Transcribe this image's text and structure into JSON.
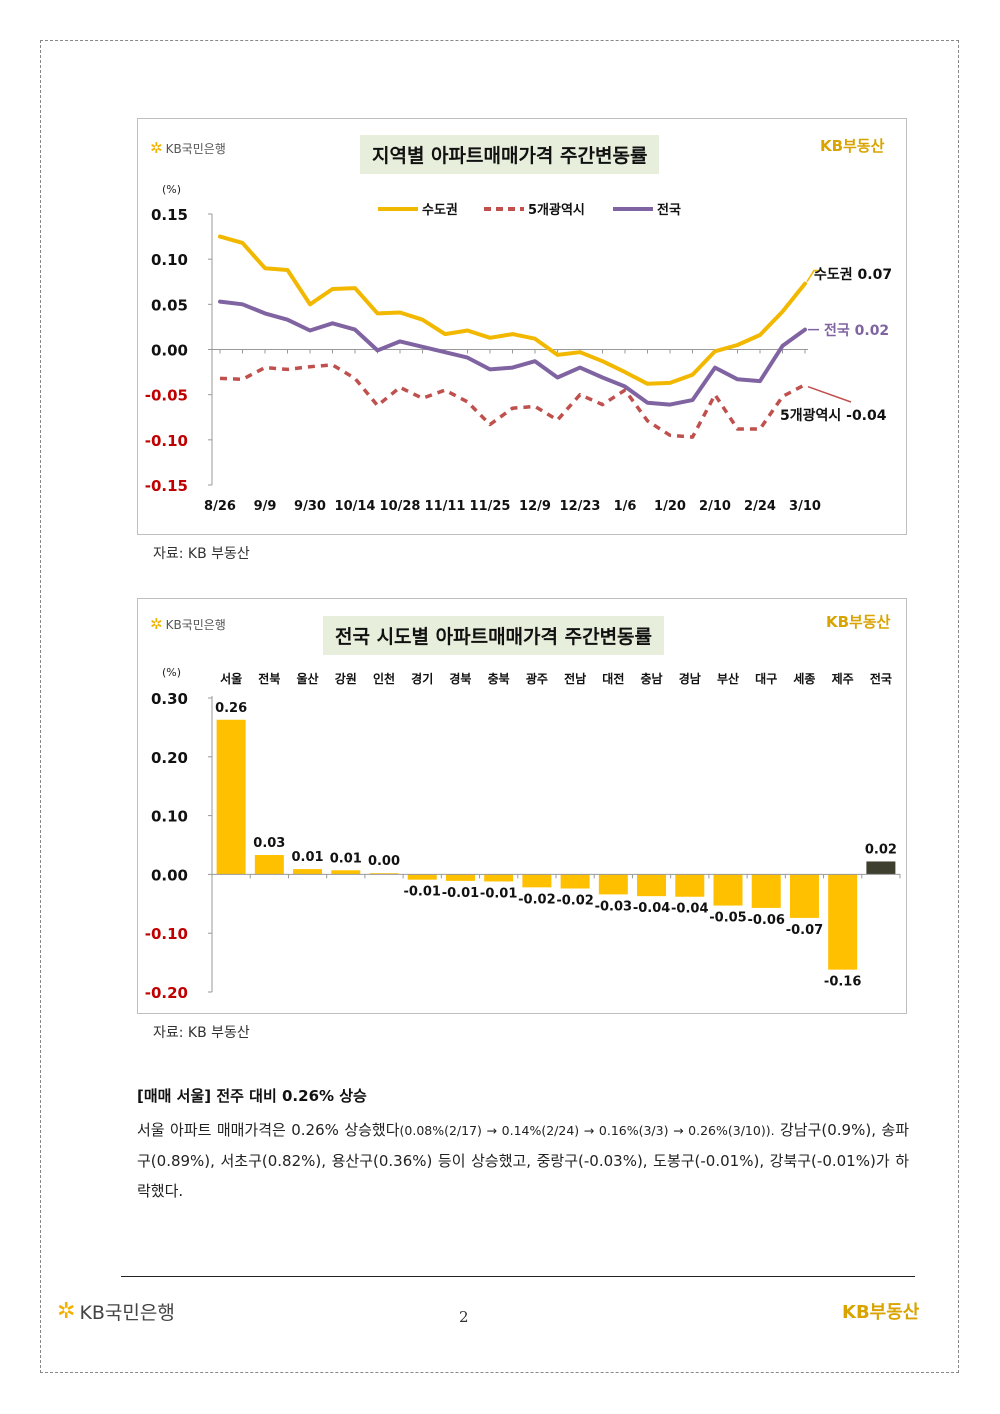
{
  "brand": {
    "kb_bank": "KB국민은행",
    "kb_realestate": "KB부동산"
  },
  "chart1": {
    "title": "지역별 아파트매매가격 주간변동률",
    "unit": "(%)",
    "source": "자료: KB 부동산",
    "end_labels": {
      "sudogwon": "수도권 0.07",
      "national": "전국 0.02",
      "metro5": "5개광역시 -0.04"
    }
  },
  "chart2": {
    "title": "전국 시도별 아파트매매가격 주간변동률",
    "unit": "(%)",
    "source": "자료: KB 부동산"
  },
  "section": {
    "heading": "[매매 서울] 전주 대비 0.26% 상승",
    "body_part1": "서울 아파트 매매가격은 0.26% 상승했다",
    "body_part2": "(0.08%(2/17) → 0.14%(2/24) → 0.16%(3/3) → 0.26%(3/10)).",
    "body_part3": " 강남구(0.9%), 송파구(0.89%), 서초구(0.82%), 용산구(0.36%) 등이 상승했고, 중랑구(-0.03%), 도봉구(-0.01%), 강북구(-0.01%)가 하락했다."
  },
  "footer": {
    "page_number": "2"
  },
  "colors": {
    "sudogwon": "#f2b800",
    "metro5": "#c0504d",
    "national": "#8064a2",
    "bar": "#ffc000",
    "bar_national": "#3f3f2f",
    "negative_tick": "#c00000",
    "title_bg": "#e7eedb"
  },
  "chart_data": [
    {
      "type": "line",
      "title": "지역별 아파트매매가격 주간변동률",
      "ylabel": "(%)",
      "ylim": [
        -0.15,
        0.15
      ],
      "yticks": [
        0.15,
        0.1,
        0.05,
        0.0,
        -0.05,
        -0.1,
        -0.15
      ],
      "ytick_labels": [
        "0.15",
        "0.10",
        "0.05",
        "0.00",
        "-0.05",
        "-0.10",
        "-0.15"
      ],
      "xtick_labels": [
        "8/26",
        "9/9",
        "9/30",
        "10/14",
        "10/28",
        "11/11",
        "11/25",
        "12/9",
        "12/23",
        "1/6",
        "1/20",
        "2/10",
        "2/24",
        "3/10"
      ],
      "legend_position": "top",
      "grid": false,
      "series": [
        {
          "name": "수도권",
          "style": "solid",
          "values": [
            0.125,
            0.118,
            0.09,
            0.088,
            0.05,
            0.067,
            0.068,
            0.04,
            0.041,
            0.033,
            0.017,
            0.021,
            0.013,
            0.017,
            0.012,
            -0.006,
            -0.003,
            -0.013,
            -0.025,
            -0.038,
            -0.037,
            -0.028,
            -0.002,
            0.005,
            0.016,
            0.042,
            0.073
          ]
        },
        {
          "name": "5개광역시",
          "style": "dashed",
          "values": [
            -0.032,
            -0.033,
            -0.02,
            -0.022,
            -0.019,
            -0.017,
            -0.032,
            -0.062,
            -0.042,
            -0.054,
            -0.045,
            -0.058,
            -0.083,
            -0.065,
            -0.063,
            -0.078,
            -0.05,
            -0.061,
            -0.045,
            -0.079,
            -0.095,
            -0.097,
            -0.05,
            -0.088,
            -0.088,
            -0.052,
            -0.039
          ]
        },
        {
          "name": "전국",
          "style": "solid",
          "values": [
            0.053,
            0.05,
            0.04,
            0.033,
            0.021,
            0.029,
            0.022,
            -0.001,
            0.009,
            0.003,
            -0.003,
            -0.009,
            -0.022,
            -0.02,
            -0.013,
            -0.031,
            -0.02,
            -0.031,
            -0.041,
            -0.059,
            -0.061,
            -0.056,
            -0.02,
            -0.033,
            -0.035,
            0.004,
            0.022
          ]
        }
      ]
    },
    {
      "type": "bar",
      "title": "전국 시도별 아파트매매가격 주간변동률",
      "ylabel": "(%)",
      "ylim": [
        -0.2,
        0.3
      ],
      "yticks": [
        0.3,
        0.2,
        0.1,
        0.0,
        -0.1,
        -0.2
      ],
      "ytick_labels": [
        "0.30",
        "0.20",
        "0.10",
        "0.00",
        "-0.10",
        "-0.20"
      ],
      "categories": [
        "서울",
        "전북",
        "울산",
        "강원",
        "인천",
        "경기",
        "경북",
        "충북",
        "광주",
        "전남",
        "대전",
        "충남",
        "경남",
        "부산",
        "대구",
        "세종",
        "제주",
        "전국"
      ],
      "values": [
        0.263,
        0.033,
        0.009,
        0.007,
        0.002,
        -0.009,
        -0.011,
        -0.012,
        -0.022,
        -0.024,
        -0.034,
        -0.037,
        -0.038,
        -0.053,
        -0.057,
        -0.074,
        -0.162,
        0.022
      ],
      "value_labels": [
        "0.26",
        "0.03",
        "0.01",
        "0.01",
        "0.00",
        "-0.01",
        "-0.01",
        "-0.01",
        "-0.02",
        "-0.02",
        "-0.03",
        "-0.04",
        "-0.04",
        "-0.05",
        "-0.06",
        "-0.07",
        "-0.16",
        "0.02"
      ],
      "grid": false
    }
  ]
}
